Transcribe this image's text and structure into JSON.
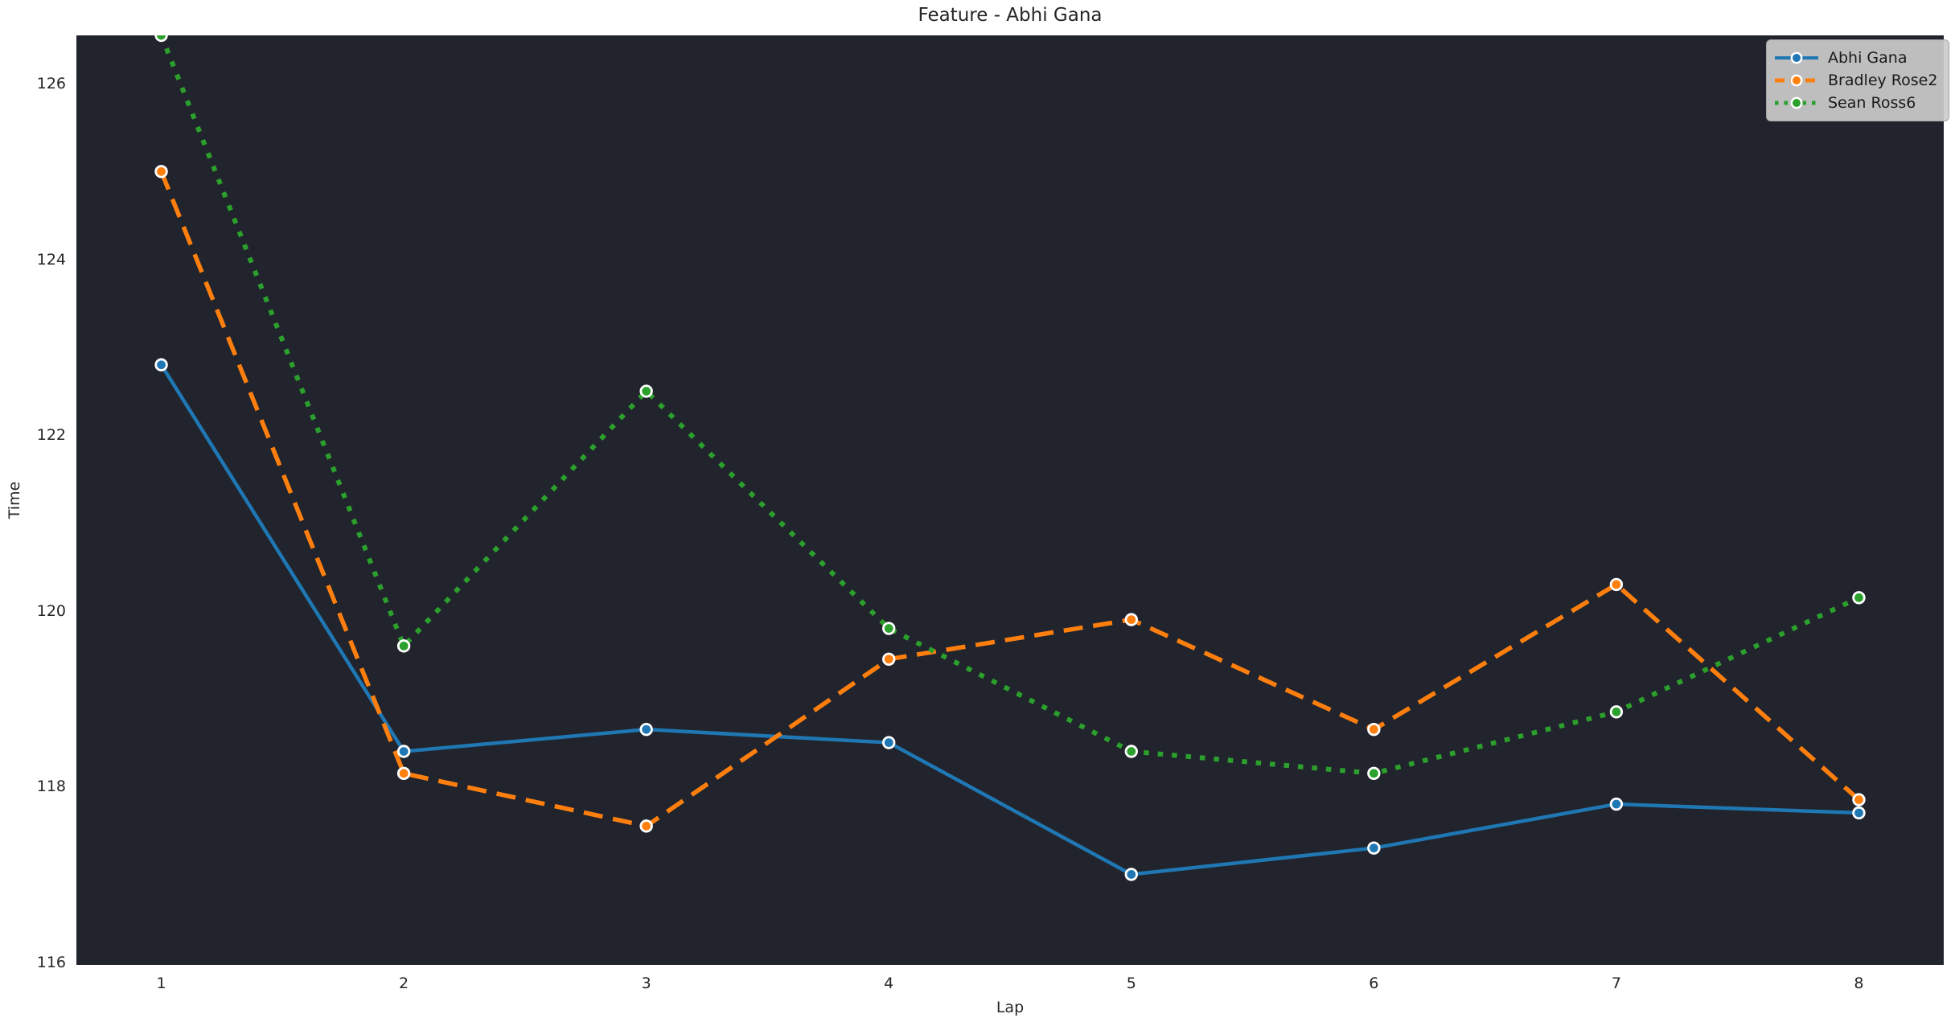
{
  "figure": {
    "title": "Feature - Abhi Gana"
  },
  "chart_data": {
    "type": "line",
    "title": "Feature - Abhi Gana",
    "xlabel": "Lap",
    "ylabel": "Time",
    "x": [
      1,
      2,
      3,
      4,
      5,
      6,
      7,
      8
    ],
    "xticks": [
      1,
      2,
      3,
      4,
      5,
      6,
      7,
      8
    ],
    "yticks": [
      116,
      118,
      120,
      122,
      124,
      126
    ],
    "xlim": [
      0.65,
      8.35
    ],
    "ylim": [
      115.97,
      126.55
    ],
    "grid": false,
    "plot_background": "#21242c",
    "figure_background": "#ffffff",
    "text_color": "#262626",
    "marker_edge_color": "#ffffff",
    "legend": {
      "position": "upper-right",
      "background": "#cccccc",
      "border_color": "#a3a3a3"
    },
    "series": [
      {
        "name": "Abhi Gana",
        "color": "#1f77b4",
        "line_style": "solid",
        "marker": "circle",
        "values": [
          122.8,
          118.4,
          118.65,
          118.5,
          117.0,
          117.3,
          117.8,
          117.7
        ]
      },
      {
        "name": "Bradley Rose2",
        "color": "#ff7f0e",
        "line_style": "dashed",
        "marker": "circle",
        "values": [
          125.0,
          118.15,
          117.55,
          119.45,
          119.9,
          118.65,
          120.3,
          117.85
        ]
      },
      {
        "name": "Sean Ross6",
        "color": "#2ca02c",
        "line_style": "dotted",
        "marker": "circle",
        "values": [
          126.55,
          119.6,
          122.5,
          119.8,
          118.4,
          118.15,
          118.85,
          120.15
        ]
      }
    ]
  }
}
